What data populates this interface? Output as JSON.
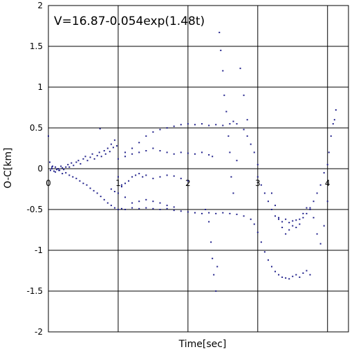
{
  "chart_data": {
    "type": "scatter",
    "title": "",
    "annotation": "V=16.87-0.054exp(1.48t)",
    "xlabel": "Time[sec]",
    "ylabel": "O-C[km]",
    "xlim": [
      0,
      4.3
    ],
    "ylim": [
      -2,
      2
    ],
    "x_ticks": [
      0,
      1,
      2,
      3,
      4
    ],
    "y_ticks": [
      -2,
      -1.5,
      -1,
      -0.5,
      0,
      0.5,
      1,
      1.5,
      2
    ],
    "x_tick_labels": [
      "0",
      "1",
      "2",
      "3",
      "4"
    ],
    "y_tick_labels": [
      "-2",
      "-1.5",
      "-1",
      "-0.5",
      "0",
      "0.5",
      "1",
      "1.5",
      "2"
    ],
    "grid": true,
    "marker_color": "#1f1f8a",
    "series": [
      {
        "name": "",
        "points": [
          [
            0.0,
            0.4
          ],
          [
            0.02,
            0.08
          ],
          [
            0.03,
            -0.02
          ],
          [
            0.05,
            0.0
          ],
          [
            0.06,
            0.03
          ],
          [
            0.08,
            -0.03
          ],
          [
            0.1,
            0.02
          ],
          [
            0.12,
            -0.01
          ],
          [
            0.14,
            0.0
          ],
          [
            0.16,
            -0.02
          ],
          [
            0.18,
            0.03
          ],
          [
            0.2,
            0.01
          ],
          [
            0.22,
            -0.01
          ],
          [
            0.25,
            0.02
          ],
          [
            0.28,
            0.05
          ],
          [
            0.3,
            0.02
          ],
          [
            0.33,
            0.07
          ],
          [
            0.36,
            0.04
          ],
          [
            0.4,
            0.08
          ],
          [
            0.43,
            0.1
          ],
          [
            0.46,
            0.06
          ],
          [
            0.5,
            0.12
          ],
          [
            0.53,
            0.15
          ],
          [
            0.56,
            0.1
          ],
          [
            0.6,
            0.14
          ],
          [
            0.63,
            0.18
          ],
          [
            0.66,
            0.12
          ],
          [
            0.7,
            0.16
          ],
          [
            0.73,
            0.2
          ],
          [
            0.76,
            0.15
          ],
          [
            0.8,
            0.22
          ],
          [
            0.82,
            0.18
          ],
          [
            0.85,
            0.25
          ],
          [
            0.88,
            0.21
          ],
          [
            0.9,
            0.3
          ],
          [
            0.93,
            0.26
          ],
          [
            0.95,
            0.35
          ],
          [
            0.98,
            0.28
          ],
          [
            0.74,
            0.49
          ],
          [
            0.05,
            0.02
          ],
          [
            0.1,
            -0.04
          ],
          [
            0.15,
            -0.02
          ],
          [
            0.2,
            -0.06
          ],
          [
            0.25,
            -0.05
          ],
          [
            0.3,
            -0.08
          ],
          [
            0.35,
            -0.1
          ],
          [
            0.4,
            -0.12
          ],
          [
            0.45,
            -0.15
          ],
          [
            0.5,
            -0.18
          ],
          [
            0.55,
            -0.2
          ],
          [
            0.6,
            -0.24
          ],
          [
            0.65,
            -0.27
          ],
          [
            0.7,
            -0.3
          ],
          [
            0.75,
            -0.34
          ],
          [
            0.8,
            -0.38
          ],
          [
            0.85,
            -0.42
          ],
          [
            0.9,
            -0.45
          ],
          [
            0.95,
            -0.48
          ],
          [
            1.0,
            -0.5
          ],
          [
            1.05,
            -0.49
          ],
          [
            1.1,
            -0.5
          ],
          [
            1.2,
            -0.48
          ],
          [
            1.3,
            -0.49
          ],
          [
            1.4,
            -0.48
          ],
          [
            1.5,
            -0.49
          ],
          [
            1.6,
            -0.5
          ],
          [
            1.7,
            -0.49
          ],
          [
            1.8,
            -0.51
          ],
          [
            1.9,
            -0.52
          ],
          [
            2.0,
            -0.53
          ],
          [
            2.1,
            -0.54
          ],
          [
            2.2,
            -0.55
          ],
          [
            2.3,
            -0.54
          ],
          [
            2.4,
            -0.55
          ],
          [
            2.5,
            -0.54
          ],
          [
            2.6,
            -0.55
          ],
          [
            2.7,
            -0.56
          ],
          [
            2.8,
            -0.58
          ],
          [
            2.9,
            -0.62
          ],
          [
            2.95,
            -0.68
          ],
          [
            3.0,
            -0.78
          ],
          [
            3.05,
            -0.9
          ],
          [
            3.1,
            -1.02
          ],
          [
            3.15,
            -1.12
          ],
          [
            3.2,
            -1.2
          ],
          [
            3.25,
            -1.26
          ],
          [
            3.3,
            -1.3
          ],
          [
            3.35,
            -1.33
          ],
          [
            3.4,
            -1.34
          ],
          [
            3.45,
            -1.35
          ],
          [
            3.5,
            -1.32
          ],
          [
            3.55,
            -1.3
          ],
          [
            3.6,
            -1.33
          ],
          [
            3.65,
            -1.28
          ],
          [
            3.7,
            -1.25
          ],
          [
            3.75,
            -1.3
          ],
          [
            0.9,
            -0.25
          ],
          [
            0.95,
            -0.28
          ],
          [
            1.0,
            -0.3
          ],
          [
            1.05,
            -0.22
          ],
          [
            1.1,
            -0.18
          ],
          [
            1.15,
            -0.15
          ],
          [
            1.2,
            -0.1
          ],
          [
            1.25,
            -0.08
          ],
          [
            1.3,
            -0.06
          ],
          [
            1.35,
            -0.1
          ],
          [
            1.4,
            -0.08
          ],
          [
            1.5,
            -0.12
          ],
          [
            1.6,
            -0.1
          ],
          [
            1.7,
            -0.08
          ],
          [
            1.8,
            -0.09
          ],
          [
            1.9,
            -0.12
          ],
          [
            2.0,
            -0.15
          ],
          [
            1.0,
            -0.1
          ],
          [
            1.05,
            -0.2
          ],
          [
            1.1,
            -0.35
          ],
          [
            1.2,
            -0.42
          ],
          [
            1.3,
            -0.4
          ],
          [
            1.4,
            -0.38
          ],
          [
            1.5,
            -0.4
          ],
          [
            1.6,
            -0.42
          ],
          [
            1.7,
            -0.45
          ],
          [
            1.8,
            -0.47
          ],
          [
            1.0,
            0.12
          ],
          [
            1.1,
            0.15
          ],
          [
            1.2,
            0.18
          ],
          [
            1.3,
            0.2
          ],
          [
            1.4,
            0.22
          ],
          [
            1.5,
            0.25
          ],
          [
            1.6,
            0.22
          ],
          [
            1.7,
            0.2
          ],
          [
            1.8,
            0.18
          ],
          [
            1.9,
            0.2
          ],
          [
            2.0,
            0.19
          ],
          [
            2.1,
            0.18
          ],
          [
            2.2,
            0.2
          ],
          [
            2.3,
            0.17
          ],
          [
            2.35,
            0.15
          ],
          [
            1.1,
            0.2
          ],
          [
            1.2,
            0.25
          ],
          [
            1.3,
            0.32
          ],
          [
            1.4,
            0.4
          ],
          [
            1.5,
            0.45
          ],
          [
            1.6,
            0.48
          ],
          [
            1.7,
            0.5
          ],
          [
            1.8,
            0.52
          ],
          [
            1.9,
            0.54
          ],
          [
            2.0,
            0.55
          ],
          [
            2.1,
            0.54
          ],
          [
            2.2,
            0.55
          ],
          [
            2.3,
            0.53
          ],
          [
            2.4,
            0.54
          ],
          [
            2.5,
            0.53
          ],
          [
            2.6,
            0.55
          ],
          [
            2.65,
            0.58
          ],
          [
            2.7,
            0.55
          ],
          [
            2.8,
            0.48
          ],
          [
            2.85,
            0.4
          ],
          [
            2.9,
            0.3
          ],
          [
            2.95,
            0.2
          ],
          [
            3.0,
            0.05
          ],
          [
            2.25,
            -0.5
          ],
          [
            2.3,
            -0.65
          ],
          [
            2.33,
            -0.9
          ],
          [
            2.35,
            -1.1
          ],
          [
            2.37,
            -1.3
          ],
          [
            2.4,
            -1.5
          ],
          [
            2.42,
            -1.2
          ],
          [
            2.45,
            1.67
          ],
          [
            2.47,
            1.45
          ],
          [
            2.5,
            1.2
          ],
          [
            2.52,
            0.9
          ],
          [
            2.55,
            0.7
          ],
          [
            2.58,
            0.4
          ],
          [
            2.6,
            0.2
          ],
          [
            2.62,
            -0.1
          ],
          [
            2.65,
            -0.3
          ],
          [
            2.7,
            0.1
          ],
          [
            2.75,
            1.23
          ],
          [
            2.8,
            0.9
          ],
          [
            2.85,
            0.6
          ],
          [
            3.0,
            -0.1
          ],
          [
            3.05,
            -0.2
          ],
          [
            3.1,
            -0.3
          ],
          [
            3.15,
            -0.4
          ],
          [
            3.2,
            -0.5
          ],
          [
            3.25,
            -0.58
          ],
          [
            3.3,
            -0.62
          ],
          [
            3.35,
            -0.65
          ],
          [
            3.4,
            -0.62
          ],
          [
            3.45,
            -0.66
          ],
          [
            3.5,
            -0.64
          ],
          [
            3.55,
            -0.63
          ],
          [
            3.6,
            -0.62
          ],
          [
            3.65,
            -0.6
          ],
          [
            3.7,
            -0.55
          ],
          [
            3.75,
            -0.48
          ],
          [
            3.8,
            -0.4
          ],
          [
            3.85,
            -0.3
          ],
          [
            3.9,
            -0.2
          ],
          [
            3.95,
            -0.05
          ],
          [
            4.0,
            0.05
          ],
          [
            3.2,
            -0.3
          ],
          [
            3.25,
            -0.45
          ],
          [
            3.3,
            -0.6
          ],
          [
            3.35,
            -0.72
          ],
          [
            3.4,
            -0.8
          ],
          [
            3.45,
            -0.75
          ],
          [
            3.5,
            -0.7
          ],
          [
            3.55,
            -0.72
          ],
          [
            3.6,
            -0.68
          ],
          [
            3.65,
            -0.55
          ],
          [
            3.7,
            -0.48
          ],
          [
            3.75,
            -0.5
          ],
          [
            3.8,
            -0.6
          ],
          [
            3.85,
            -0.8
          ],
          [
            3.9,
            -0.92
          ],
          [
            3.95,
            -0.7
          ],
          [
            4.0,
            -0.4
          ],
          [
            4.02,
            0.2
          ],
          [
            4.05,
            0.4
          ],
          [
            4.08,
            0.55
          ],
          [
            4.1,
            0.6
          ],
          [
            4.12,
            0.72
          ]
        ]
      }
    ]
  }
}
